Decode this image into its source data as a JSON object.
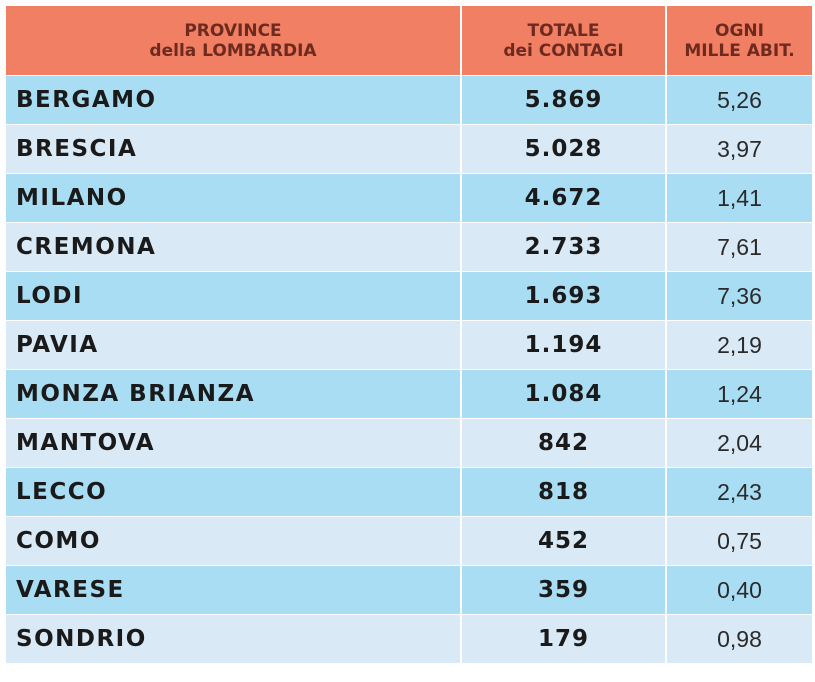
{
  "header": {
    "province_line1": "PROVINCE",
    "province_line2": "della LOMBARDIA",
    "total_line1": "TOTALE",
    "total_line2": "dei CONTAGI",
    "rate_line1": "OGNI",
    "rate_line2": "MILLE ABIT."
  },
  "rows": [
    {
      "province": "BERGAMO",
      "total": "5.869",
      "per_thousand": "5,26"
    },
    {
      "province": "BRESCIA",
      "total": "5.028",
      "per_thousand": "3,97"
    },
    {
      "province": "MILANO",
      "total": "4.672",
      "per_thousand": "1,41"
    },
    {
      "province": "CREMONA",
      "total": "2.733",
      "per_thousand": "7,61"
    },
    {
      "province": "LODI",
      "total": "1.693",
      "per_thousand": "7,36"
    },
    {
      "province": "PAVIA",
      "total": "1.194",
      "per_thousand": "2,19"
    },
    {
      "province": "MONZA BRIANZA",
      "total": "1.084",
      "per_thousand": "1,24"
    },
    {
      "province": "MANTOVA",
      "total": "842",
      "per_thousand": "2,04"
    },
    {
      "province": "LECCO",
      "total": "818",
      "per_thousand": "2,43"
    },
    {
      "province": "COMO",
      "total": "452",
      "per_thousand": "0,75"
    },
    {
      "province": "VARESE",
      "total": "359",
      "per_thousand": "0,40"
    },
    {
      "province": "SONDRIO",
      "total": "179",
      "per_thousand": "0,98"
    }
  ],
  "colors": {
    "header_bg": "#f07f64",
    "row_odd_bg": "#a9ddf3",
    "row_even_bg": "#d9e9f5"
  }
}
